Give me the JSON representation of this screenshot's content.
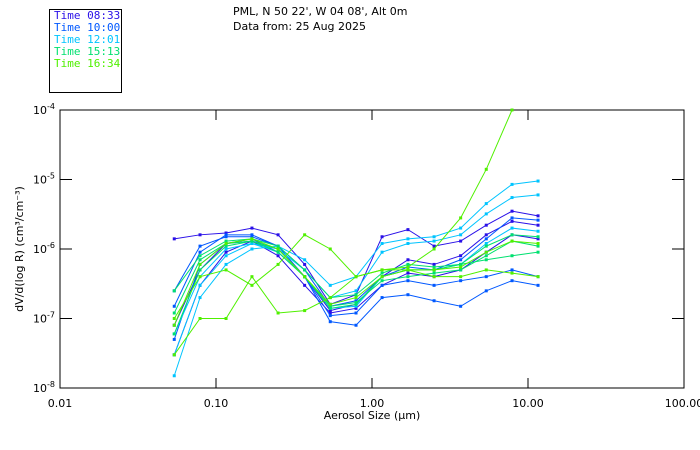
{
  "header": {
    "line1": "PML, N 50 22', W 04 08', Alt 0m",
    "line2": "Data from: 25 Aug 2025"
  },
  "legend": [
    {
      "label": "Time 08:33",
      "color": "#2a10e8"
    },
    {
      "label": "Time 10:00",
      "color": "#0058ff"
    },
    {
      "label": "Time 12:01",
      "color": "#00c4ff"
    },
    {
      "label": "Time 15:13",
      "color": "#00e070"
    },
    {
      "label": "Time 16:34",
      "color": "#50f000"
    }
  ],
  "chart_data": {
    "type": "line",
    "xlabel": "Aerosol Size (μm)",
    "ylabel": "dV/d(log R) (cm³/cm⁻³)",
    "xscale": "log",
    "yscale": "log",
    "xlim": [
      0.01,
      100
    ],
    "ylim": [
      1e-08,
      0.0001
    ],
    "xticks": [
      {
        "v": 0.01,
        "label": "0.01"
      },
      {
        "v": 0.1,
        "label": "0.10"
      },
      {
        "v": 1,
        "label": "1.00"
      },
      {
        "v": 10,
        "label": "10.00"
      },
      {
        "v": 100,
        "label": "100.00"
      }
    ],
    "yticks": [
      {
        "v": 0.0001,
        "base": "10",
        "exp": "-4"
      },
      {
        "v": 1e-05,
        "base": "10",
        "exp": "-5"
      },
      {
        "v": 1e-06,
        "base": "10",
        "exp": "-6"
      },
      {
        "v": 1e-07,
        "base": "10",
        "exp": "-7"
      },
      {
        "v": 1e-08,
        "base": "10",
        "exp": "-8"
      }
    ],
    "x": [
      0.054,
      0.079,
      0.116,
      0.17,
      0.25,
      0.37,
      0.54,
      0.79,
      1.16,
      1.7,
      2.5,
      3.7,
      5.4,
      7.9,
      11.6
    ],
    "series": [
      {
        "group": 0,
        "values": [
          1.4e-06,
          1.6e-06,
          1.7e-06,
          2e-06,
          1.6e-06,
          6e-07,
          1.6e-07,
          2.2e-07,
          1.5e-06,
          1.9e-06,
          1.1e-06,
          1.3e-06,
          2.2e-06,
          3.5e-06,
          3e-06
        ]
      },
      {
        "group": 0,
        "values": [
          8e-08,
          5e-07,
          1.2e-06,
          1.3e-06,
          1e-06,
          4e-07,
          1.3e-07,
          1.6e-07,
          4e-07,
          7e-07,
          6e-07,
          8e-07,
          1.6e-06,
          2.5e-06,
          2.2e-06
        ]
      },
      {
        "group": 0,
        "values": [
          3e-08,
          3e-07,
          9e-07,
          1.3e-06,
          8e-07,
          3e-07,
          1.2e-07,
          1.4e-07,
          3e-07,
          4.5e-07,
          4e-07,
          5e-07,
          9e-07,
          1.6e-06,
          1.4e-06
        ]
      },
      {
        "group": 1,
        "values": [
          1.5e-07,
          9e-07,
          1.6e-06,
          1.6e-06,
          1.1e-06,
          4e-07,
          9e-08,
          8e-08,
          2e-07,
          2.2e-07,
          1.8e-07,
          1.5e-07,
          2.5e-07,
          3.5e-07,
          3e-07
        ]
      },
      {
        "group": 1,
        "values": [
          2.5e-07,
          1.1e-06,
          1.5e-06,
          1.5e-06,
          1.1e-06,
          5e-07,
          1.5e-07,
          1.8e-07,
          4e-07,
          5.5e-07,
          5e-07,
          7e-07,
          1.4e-06,
          2.8e-06,
          2.6e-06
        ]
      },
      {
        "group": 1,
        "values": [
          5e-08,
          6e-07,
          1.2e-06,
          1.4e-06,
          9e-07,
          4e-07,
          1.1e-07,
          1.2e-07,
          3e-07,
          3.5e-07,
          3e-07,
          3.5e-07,
          4e-07,
          5e-07,
          4e-07
        ]
      },
      {
        "group": 2,
        "values": [
          1.5e-08,
          2e-07,
          6e-07,
          1e-06,
          1.1e-06,
          7e-07,
          3e-07,
          4e-07,
          1.2e-06,
          1.4e-06,
          1.5e-06,
          2e-06,
          4.5e-06,
          8.5e-06,
          9.5e-06
        ]
      },
      {
        "group": 2,
        "values": [
          3e-08,
          3e-07,
          8e-07,
          1.2e-06,
          1e-06,
          5e-07,
          2e-07,
          2.5e-07,
          9e-07,
          1.2e-06,
          1.3e-06,
          1.6e-06,
          3.2e-06,
          5.5e-06,
          6e-06
        ]
      },
      {
        "group": 2,
        "values": [
          6e-08,
          4e-07,
          1e-06,
          1.2e-06,
          9e-07,
          4e-07,
          1.4e-07,
          1.5e-07,
          4e-07,
          5e-07,
          5e-07,
          6e-07,
          1.2e-06,
          2e-06,
          1.8e-06
        ]
      },
      {
        "group": 3,
        "values": [
          1.2e-07,
          7e-07,
          1.2e-06,
          1.3e-06,
          1e-06,
          4e-07,
          1.4e-07,
          1.6e-07,
          4e-07,
          5e-07,
          5e-07,
          6e-07,
          1.1e-06,
          1.6e-06,
          1.5e-06
        ]
      },
      {
        "group": 3,
        "values": [
          6e-08,
          5e-07,
          1.1e-06,
          1.3e-06,
          9e-07,
          4e-07,
          1.5e-07,
          1.7e-07,
          3.5e-07,
          4e-07,
          4.5e-07,
          5e-07,
          8e-07,
          1.3e-06,
          1.1e-06
        ]
      },
      {
        "group": 3,
        "values": [
          2.5e-07,
          8e-07,
          1.3e-06,
          1.4e-06,
          1.1e-06,
          5e-07,
          2e-07,
          2.2e-07,
          4.5e-07,
          6e-07,
          5.5e-07,
          6e-07,
          7e-07,
          8e-07,
          9e-07
        ]
      },
      {
        "group": 4,
        "values": [
          3e-08,
          1e-07,
          1e-07,
          4e-07,
          1.2e-07,
          1.3e-07,
          2e-07,
          4e-07,
          5e-07,
          5.5e-07,
          1e-06,
          2.8e-06,
          1.4e-05,
          0.0001,
          null
        ]
      },
      {
        "group": 4,
        "values": [
          1e-07,
          4e-07,
          5e-07,
          3e-07,
          6e-07,
          1.6e-06,
          1e-06,
          4e-07,
          5e-07,
          5e-07,
          4e-07,
          4e-07,
          5e-07,
          4.5e-07,
          4e-07
        ]
      },
      {
        "group": 4,
        "values": [
          8e-08,
          6e-07,
          1.2e-06,
          1.4e-06,
          1e-06,
          4e-07,
          1.6e-07,
          2e-07,
          4e-07,
          5e-07,
          5e-07,
          5.5e-07,
          9e-07,
          1.3e-06,
          1.2e-06
        ]
      }
    ]
  }
}
